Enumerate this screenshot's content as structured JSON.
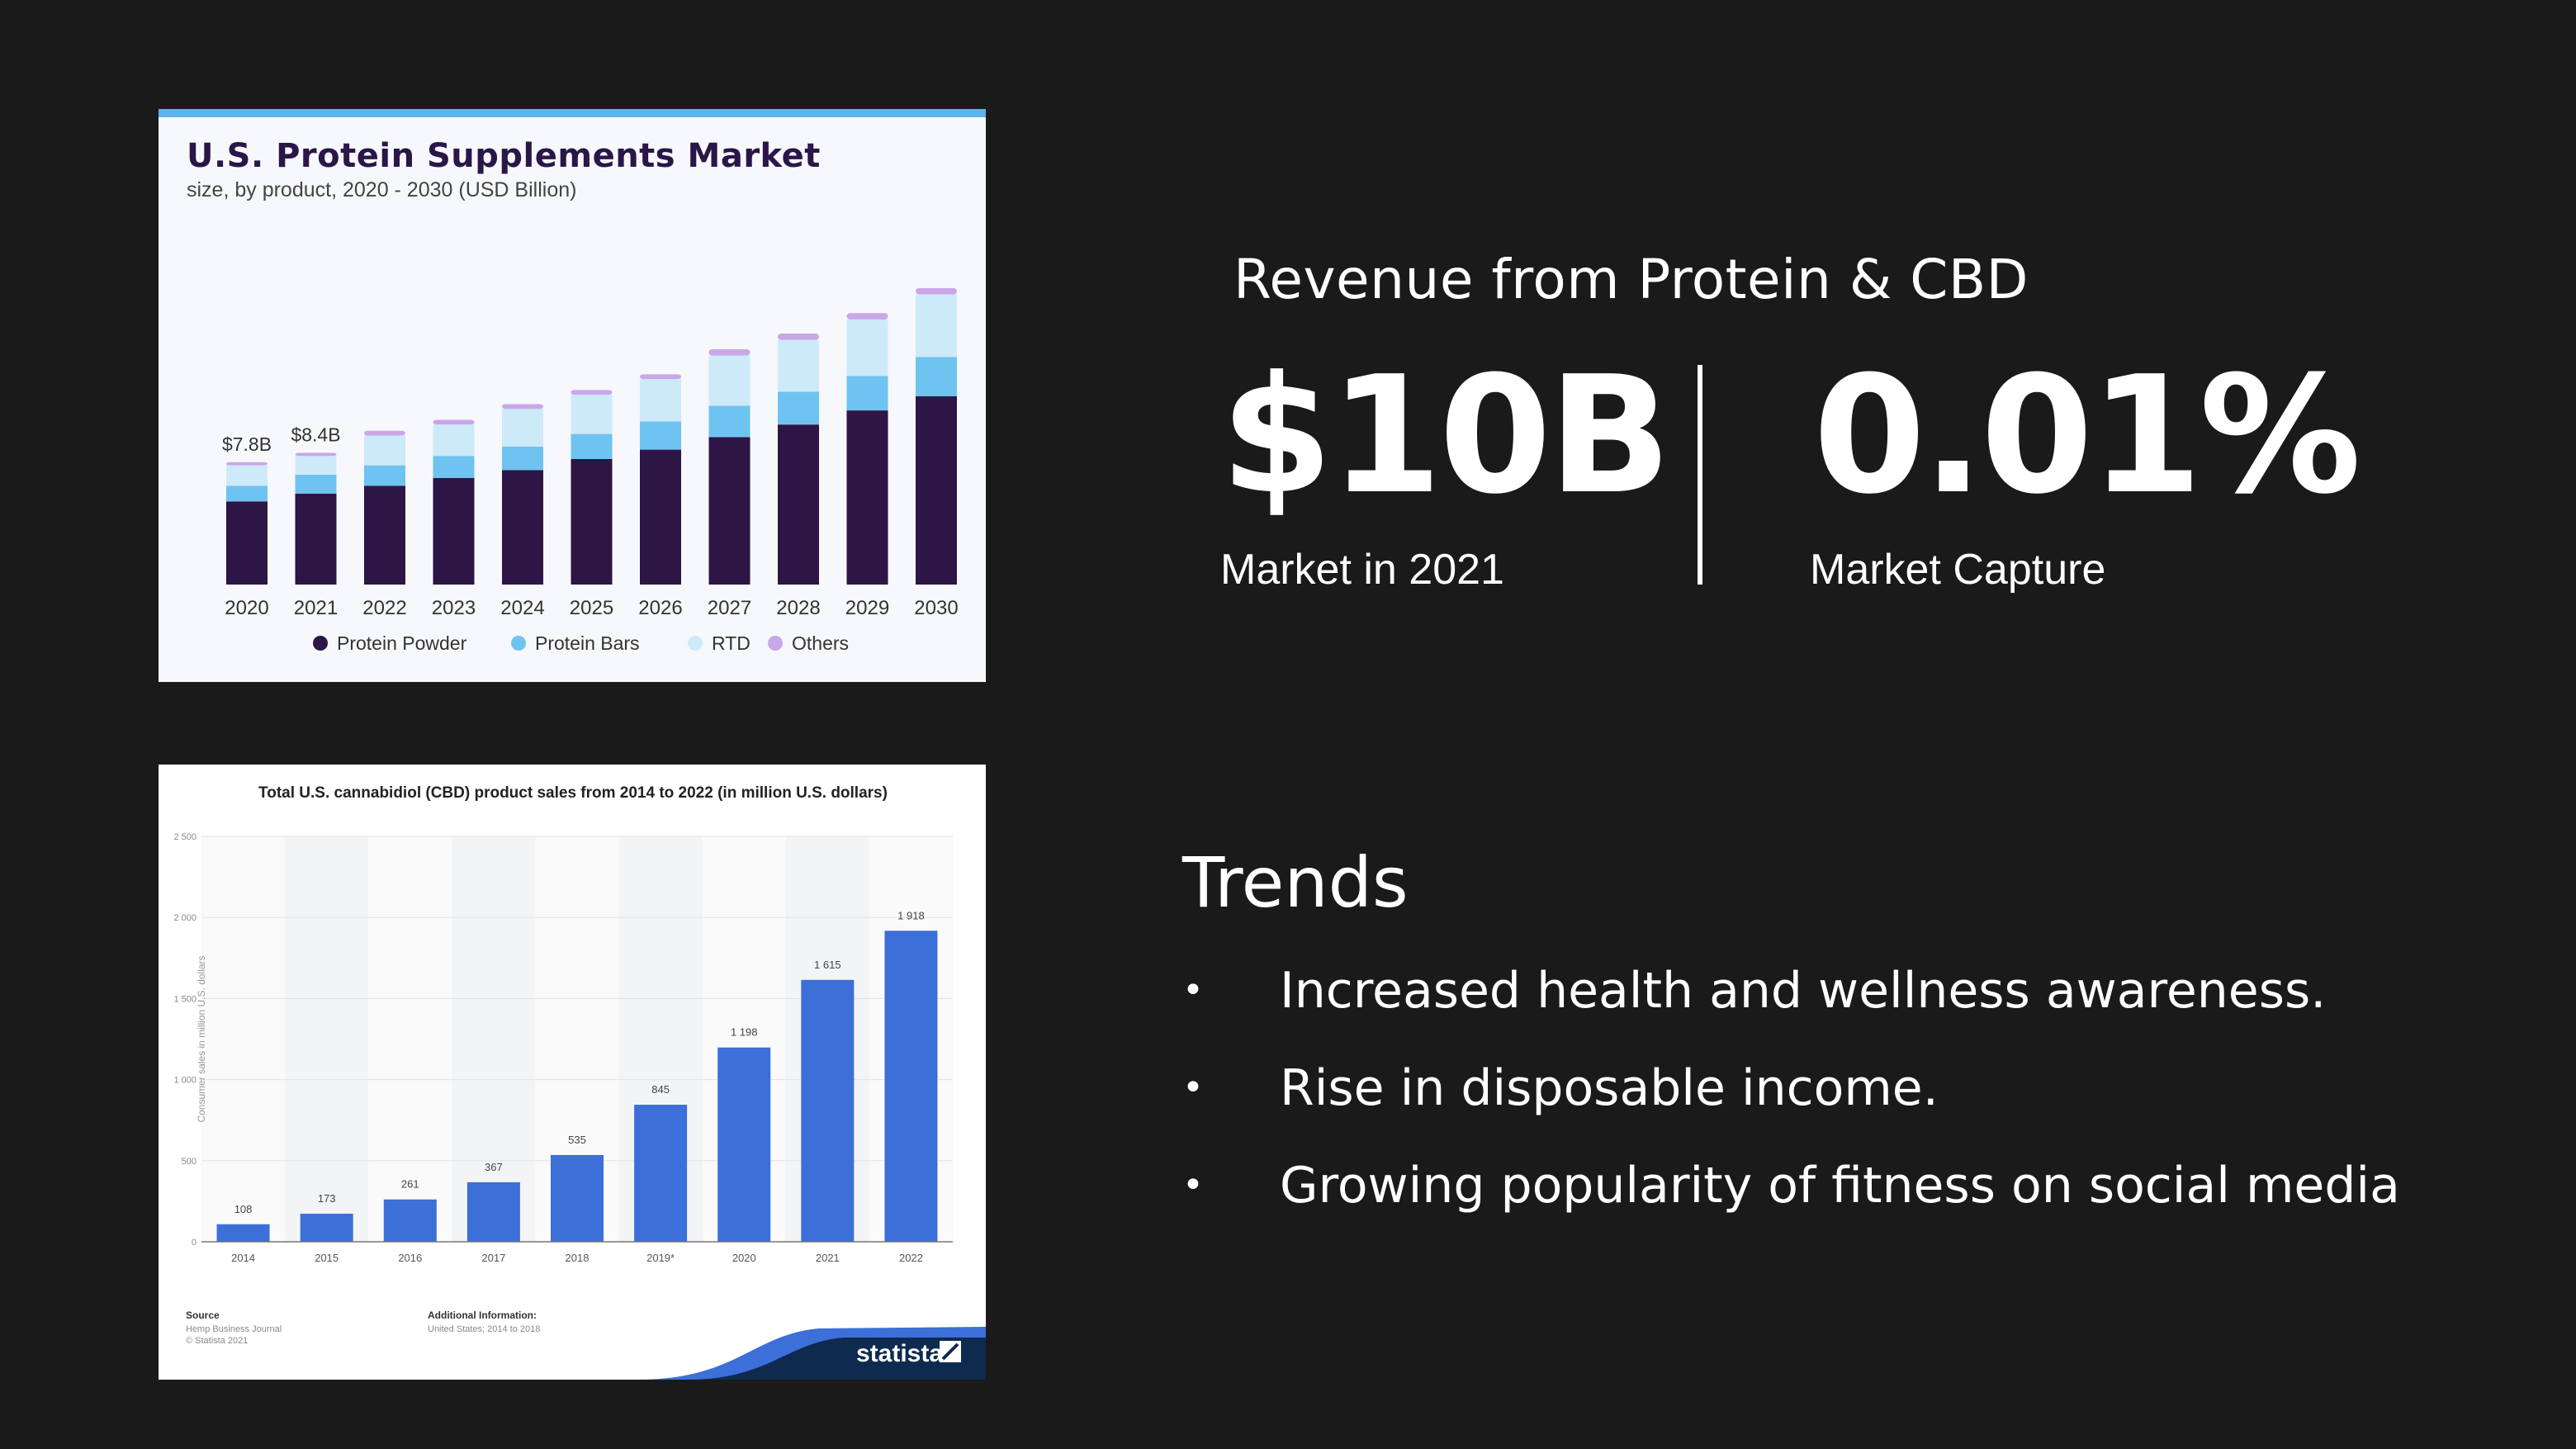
{
  "protein_chart": {
    "title": "U.S. Protein Supplements Market",
    "subtitle": "size, by product, 2020 - 2030 (USD Billion)",
    "colors": {
      "Protein Powder": "#2d1545",
      "Protein Bars": "#6fc3f0",
      "RTD": "#cdeaf9",
      "Others": "#c9a7e8",
      "accent_bar": "#5bb4ea"
    }
  },
  "cbd_chart": {
    "title": "Total U.S. cannabidiol (CBD) product sales from 2014 to 2022 (in million U.S. dollars)",
    "source_heading": "Source",
    "source_lines": [
      "Hemp Business Journal",
      "© Statista 2021"
    ],
    "additional_heading": "Additional Information:",
    "additional_lines": [
      "United States; 2014 to 2018"
    ],
    "brand": "statista",
    "colors": {
      "bar": "#3c6fd8",
      "brand_wave": "#0f2a4f"
    }
  },
  "chart_data": [
    {
      "type": "bar",
      "stacked": true,
      "title": "U.S. Protein Supplements Market",
      "subtitle": "size, by product, 2020 - 2030 (USD Billion)",
      "categories": [
        "2020",
        "2021",
        "2022",
        "2023",
        "2024",
        "2025",
        "2026",
        "2027",
        "2028",
        "2029",
        "2030"
      ],
      "series": [
        {
          "name": "Protein Powder",
          "values": [
            5.3,
            5.8,
            6.3,
            6.8,
            7.3,
            8.0,
            8.6,
            9.4,
            10.2,
            11.1,
            12.0
          ]
        },
        {
          "name": "Protein Bars",
          "values": [
            1.0,
            1.2,
            1.3,
            1.4,
            1.5,
            1.6,
            1.8,
            2.0,
            2.1,
            2.2,
            2.5
          ]
        },
        {
          "name": "RTD",
          "values": [
            1.3,
            1.2,
            1.9,
            2.0,
            2.4,
            2.5,
            2.7,
            3.2,
            3.3,
            3.6,
            4.0
          ]
        },
        {
          "name": "Others",
          "values": [
            0.2,
            0.2,
            0.3,
            0.3,
            0.3,
            0.3,
            0.3,
            0.4,
            0.4,
            0.4,
            0.4
          ]
        }
      ],
      "data_labels": [
        {
          "category": "2020",
          "text": "$7.8B"
        },
        {
          "category": "2021",
          "text": "$8.4B"
        }
      ],
      "ylim": [
        0,
        20
      ],
      "xlabel": "",
      "ylabel": "",
      "legend": "bottom",
      "grid": false
    },
    {
      "type": "bar",
      "title": "Total U.S. cannabidiol (CBD) product sales from 2014 to 2022 (in million U.S. dollars)",
      "categories": [
        "2014",
        "2015",
        "2016",
        "2017",
        "2018",
        "2019*",
        "2020",
        "2021",
        "2022"
      ],
      "values": [
        108,
        173,
        261,
        367,
        535,
        845,
        1198,
        1615,
        1918
      ],
      "value_labels": [
        "108",
        "173",
        "261",
        "367",
        "535",
        "845",
        "1 198",
        "1 615",
        "1 918"
      ],
      "ylabel": "Consumer sales in million U.S. dollars",
      "yticks": [
        "0",
        "500",
        "1 000",
        "1 500",
        "2 000",
        "2 500"
      ],
      "ylim": [
        0,
        2500
      ],
      "grid": true,
      "legend": "none"
    }
  ],
  "revenue": {
    "title": "Revenue from Protein & CBD",
    "stat1_value": "$10B",
    "stat1_label": "Market in 2021",
    "stat2_value": "0.01%",
    "stat2_label": "Market Capture"
  },
  "trends": {
    "title": "Trends",
    "bullet": "•",
    "items": [
      "Increased health and wellness awareness.",
      "Rise in disposable income.",
      "Growing popularity of fitness on social media"
    ]
  }
}
